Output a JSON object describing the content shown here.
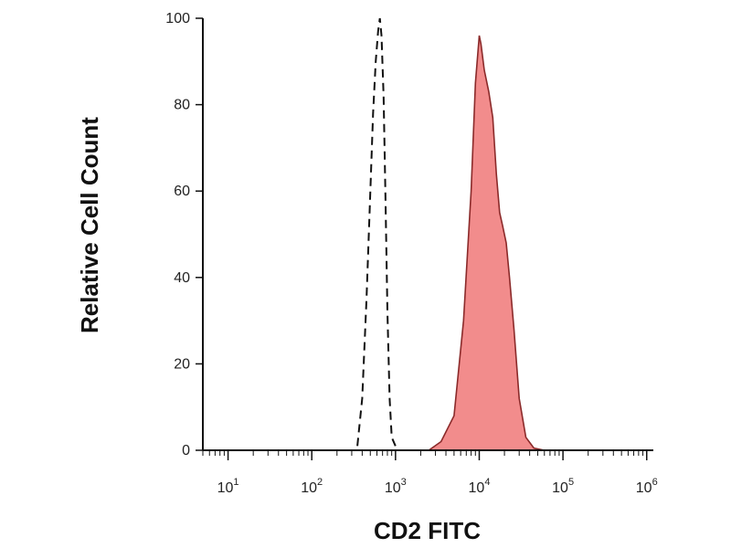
{
  "chart_data": {
    "type": "area",
    "xlabel": "CD2 FITC",
    "ylabel": "Relative Cell Count",
    "x_scale": "log",
    "xlim": [
      5,
      1200000
    ],
    "ylim": [
      0,
      100
    ],
    "grid": false,
    "x_ticks": [
      {
        "value": 10,
        "base": "10",
        "exp": "1"
      },
      {
        "value": 100,
        "base": "10",
        "exp": "2"
      },
      {
        "value": 1000,
        "base": "10",
        "exp": "3"
      },
      {
        "value": 10000,
        "base": "10",
        "exp": "4"
      },
      {
        "value": 100000,
        "base": "10",
        "exp": "5"
      },
      {
        "value": 1000000,
        "base": "10",
        "exp": "6"
      }
    ],
    "y_ticks": [
      {
        "value": 0,
        "label": "0"
      },
      {
        "value": 20,
        "label": "20"
      },
      {
        "value": 40,
        "label": "40"
      },
      {
        "value": 60,
        "label": "60"
      },
      {
        "value": 80,
        "label": "80"
      },
      {
        "value": 100,
        "label": "100"
      }
    ],
    "series": [
      {
        "style": "dashed",
        "color": "#111111",
        "x": [
          350,
          400,
          450,
          500,
          540,
          580,
          620,
          650,
          680,
          720,
          760,
          800,
          850,
          900,
          1000
        ],
        "y": [
          1,
          12,
          35,
          60,
          78,
          90,
          97,
          100,
          96,
          82,
          58,
          32,
          12,
          3,
          1
        ]
      },
      {
        "style": "filled",
        "color": "#f28c8c",
        "line_color": "#8b2a2a",
        "x": [
          2500,
          3500,
          5000,
          6500,
          8000,
          9000,
          10000,
          10500,
          11500,
          13000,
          14500,
          16000,
          17500,
          19000,
          21000,
          23000,
          26000,
          30000,
          36000,
          45000,
          60000
        ],
        "y": [
          0,
          2,
          8,
          30,
          60,
          85,
          96,
          94,
          88,
          83,
          77,
          64,
          55,
          52,
          48,
          40,
          28,
          12,
          3,
          0.5,
          0
        ]
      }
    ]
  }
}
